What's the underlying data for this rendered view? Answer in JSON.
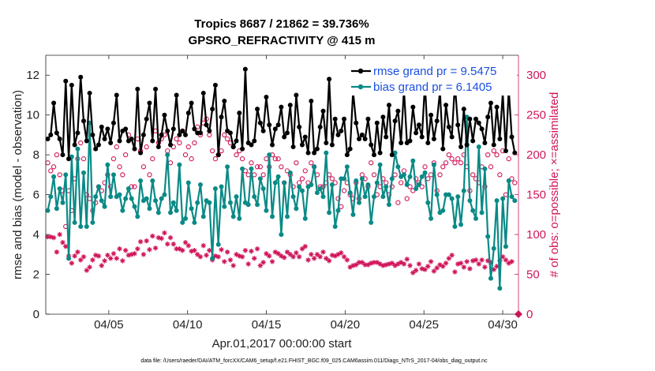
{
  "chart_data": {
    "type": "line",
    "title_line1": "Tropics 8687 / 21862 = 39.736%",
    "title_line2": "GPSRO_REFRACTIVITY @ 415 m",
    "xlabel": "Apr.01,2017 00:00:00 start",
    "ylabel_left": "rmse and bias (model - observation)",
    "ylabel_right": "# of obs: o=possible; ×=assimilated",
    "xlim": [
      1,
      31
    ],
    "ylim_left": [
      0,
      13
    ],
    "ylim_right": [
      0,
      325
    ],
    "x_ticks": [
      5,
      10,
      15,
      20,
      25,
      30
    ],
    "x_tick_labels": [
      "04/05",
      "04/10",
      "04/15",
      "04/20",
      "04/25",
      "04/30"
    ],
    "y_left_ticks": [
      "0",
      "2",
      "4",
      "6",
      "8",
      "10",
      "12"
    ],
    "y_right_ticks": [
      "0",
      "50",
      "100",
      "150",
      "200",
      "250",
      "300"
    ],
    "legend_position": "top-right",
    "footnote": "data file: /Users/raeder/DAI/ATM_forcXX/CAM6_setup/f.e21.FHIST_BGC.f09_025.CAM6assim.011/Diags_NTrS_2017-04/obs_diag_output.nc",
    "series": [
      {
        "name": "rmse grand pr = 9.5475",
        "axis": "left",
        "color": "#000000",
        "values": [
          8.8,
          9.0,
          10.6,
          9.1,
          8.8,
          8.0,
          11.7,
          7.8,
          11.5,
          8.5,
          9.1,
          11.9,
          9.7,
          8.7,
          11.1,
          9.0,
          8.3,
          8.5,
          9.4,
          8.8,
          9.3,
          8.6,
          9.6,
          11.0,
          8.7,
          9.2,
          9.3,
          8.7,
          8.8,
          8.3,
          11.3,
          8.1,
          9.0,
          9.8,
          10.6,
          8.7,
          11.3,
          8.4,
          9.0,
          10.0,
          9.2,
          8.5,
          9.3,
          11.0,
          9.0,
          9.2,
          9.0,
          10.1,
          10.6,
          9.3,
          9.1,
          9.1,
          11.1,
          9.5,
          9.2,
          10.3,
          11.5,
          8.0,
          9.9,
          10.7,
          9.2,
          9.1,
          8.4,
          8.7,
          10.1,
          8.3,
          12.3,
          8.6,
          8.5,
          8.7,
          10.3,
          9.6,
          9.2,
          10.9,
          9.5,
          8.5,
          9.3,
          9.5,
          10.4,
          8.9,
          9.1,
          10.5,
          8.4,
          11.0,
          9.4,
          8.5,
          8.9,
          8.1,
          10.7,
          8.1,
          8.3,
          9.4,
          10.2,
          8.6,
          11.8,
          8.5,
          9.8,
          9.0,
          9.2,
          9.8,
          8.0,
          8.3,
          11.2,
          9.6,
          8.8,
          9.0,
          8.8,
          9.8,
          8.5,
          8.0,
          9.6,
          8.1,
          9.9,
          8.9,
          10.5,
          8.0,
          9.7,
          10.2,
          8.6,
          11.3,
          8.6,
          8.7,
          10.4,
          9.1,
          9.5,
          8.9,
          11.6,
          8.6,
          10.0,
          8.8,
          9.7,
          11.2,
          8.3,
          10.5,
          9.4,
          8.9,
          11.6,
          9.5,
          8.4,
          10.3,
          8.5,
          9.8,
          8.7,
          9.8,
          9.6,
          9.3,
          8.6,
          9.9,
          10.6,
          8.5,
          10.4,
          8.8,
          11.1,
          8.2,
          11.3,
          8.9,
          8.1
        ]
      },
      {
        "name": "bias grand pr = 6.1405",
        "axis": "left",
        "color": "#0a8a86",
        "values": [
          5.2,
          5.9,
          6.9,
          5.3,
          6.3,
          5.6,
          7.0,
          2.8,
          7.9,
          4.6,
          8.3,
          4.4,
          7.1,
          4.4,
          9.6,
          4.6,
          5.9,
          6.4,
          5.7,
          5.4,
          7.5,
          5.9,
          7.0,
          5.9,
          6.0,
          5.2,
          5.8,
          6.3,
          5.8,
          5.4,
          4.9,
          6.7,
          5.7,
          5.8,
          5.3,
          6.7,
          5.7,
          5.1,
          5.8,
          6.0,
          8.0,
          5.1,
          5.6,
          5.2,
          7.5,
          4.6,
          4.8,
          6.6,
          5.3,
          4.6,
          5.6,
          6.5,
          4.9,
          5.7,
          5.6,
          2.8,
          6.3,
          3.5,
          6.4,
          5.4,
          7.4,
          5.6,
          4.9,
          5.9,
          4.8,
          7.3,
          5.6,
          5.5,
          7.3,
          5.9,
          5.5,
          6.8,
          6.3,
          5.2,
          8.0,
          4.9,
          6.6,
          6.9,
          4.0,
          6.6,
          4.9,
          7.1,
          5.9,
          5.3,
          6.4,
          6.2,
          4.8,
          6.4,
          6.5,
          7.4,
          6.1,
          6.3,
          5.9,
          8.1,
          5.1,
          6.5,
          4.4,
          5.2,
          6.8,
          6.8,
          7.4,
          6.1,
          5.0,
          6.7,
          5.6,
          6.8,
          5.9,
          6.5,
          4.6,
          5.9,
          6.6,
          7.5,
          5.9,
          6.4,
          5.5,
          6.8,
          8.1,
          7.4,
          6.9,
          7.0,
          6.5,
          6.9,
          7.7,
          6.3,
          6.5,
          6.9,
          7.1,
          5.6,
          4.8,
          7.5,
          6.0,
          5.1,
          5.2,
          6.0,
          6.0,
          5.8,
          4.4,
          5.9,
          4.5,
          6.2,
          9.9,
          5.7,
          5.2,
          4.8,
          8.4,
          5.1,
          7.3,
          3.9,
          1.8,
          3.3,
          5.7,
          1.3,
          5.8,
          3.4,
          6.7,
          5.9,
          5.7
        ]
      },
      {
        "name": "possible",
        "axis": "right",
        "marker": "circle",
        "color": "#d0155a",
        "values": [
          190,
          180,
          185,
          200,
          175,
          155,
          110,
          155,
          130,
          170,
          195,
          215,
          195,
          150,
          145,
          130,
          140,
          160,
          155,
          165,
          175,
          160,
          195,
          210,
          185,
          175,
          200,
          225,
          160,
          160,
          220,
          205,
          185,
          210,
          175,
          195,
          230,
          215,
          220,
          225,
          205,
          190,
          210,
          220,
          215,
          230,
          200,
          210,
          195,
          215,
          235,
          225,
          240,
          245,
          225,
          205,
          195,
          200,
          205,
          225,
          220,
          215,
          210,
          200,
          205,
          195,
          180,
          175,
          190,
          175,
          185,
          185,
          175,
          195,
          185,
          200,
          195,
          195,
          185,
          165,
          180,
          175,
          160,
          190,
          165,
          170,
          180,
          165,
          190,
          185,
          175,
          160,
          160,
          165,
          175,
          170,
          165,
          145,
          135,
          155,
          165,
          150,
          145,
          165,
          145,
          175,
          170,
          160,
          190,
          175,
          150,
          160,
          170,
          165,
          150,
          160,
          175,
          140,
          165,
          180,
          145,
          160,
          155,
          170,
          165,
          160,
          185,
          170,
          175,
          190,
          155,
          175,
          185,
          190,
          200,
          195,
          190,
          195,
          190,
          200,
          185,
          155,
          175,
          170,
          165,
          185,
          160,
          200,
          185,
          205,
          200,
          175,
          205,
          150,
          195,
          170,
          165
        ]
      },
      {
        "name": "assimilated",
        "axis": "right",
        "marker": "asterisk",
        "color": "#d0155a",
        "values": [
          97,
          97,
          96,
          78,
          100,
          90,
          85,
          73,
          64,
          73,
          78,
          68,
          72,
          55,
          59,
          68,
          74,
          73,
          61,
          67,
          74,
          70,
          76,
          70,
          82,
          67,
          80,
          74,
          75,
          76,
          82,
          91,
          75,
          92,
          81,
          98,
          83,
          96,
          95,
          102,
          88,
          96,
          88,
          82,
          82,
          80,
          90,
          86,
          79,
          80,
          75,
          72,
          86,
          74,
          80,
          68,
          73,
          72,
          81,
          66,
          78,
          68,
          61,
          75,
          73,
          72,
          80,
          63,
          79,
          70,
          82,
          61,
          65,
          76,
          73,
          66,
          78,
          76,
          73,
          71,
          78,
          75,
          72,
          77,
          72,
          82,
          85,
          68,
          75,
          70,
          75,
          72,
          78,
          70,
          67,
          74,
          73,
          75,
          77,
          72,
          68,
          59,
          61,
          62,
          65,
          65,
          62,
          62,
          64,
          65,
          65,
          63,
          61,
          62,
          63,
          64,
          61,
          63,
          65,
          63,
          69,
          61,
          52,
          55,
          63,
          57,
          56,
          60,
          66,
          54,
          58,
          62,
          60,
          64,
          70,
          74,
          53,
          63,
          64,
          59,
          66,
          57,
          67,
          68,
          63,
          68,
          59,
          67,
          65,
          56,
          60,
          67,
          72,
          68,
          64,
          66
        ]
      }
    ],
    "possible_end_marker": 0
  }
}
